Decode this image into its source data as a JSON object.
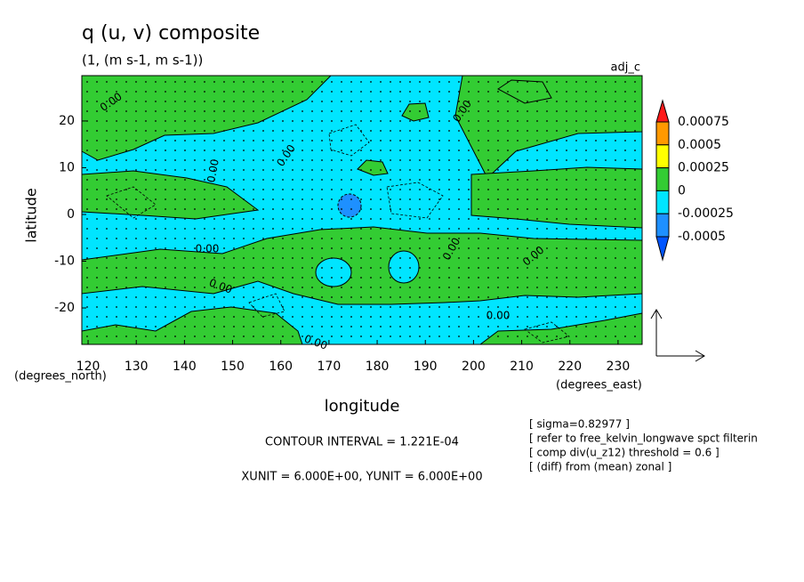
{
  "chart_data": {
    "type": "contour",
    "title": "q (u, v) composite",
    "subtitle": "(1, (m s-1, m s-1))",
    "run_label": "adj_c",
    "x_label": "longitude",
    "y_label": "latitude",
    "y_units": "(degrees_north)",
    "x_units": "(degrees_east)",
    "xlim": [
      118.7,
      235
    ],
    "ylim": [
      -27.8,
      29.7
    ],
    "xticks": [
      120,
      130,
      140,
      150,
      160,
      170,
      180,
      190,
      200,
      210,
      220,
      230
    ],
    "yticks": [
      20,
      10,
      0,
      -10,
      -20
    ],
    "colorbar": {
      "levels": [
        0.00075,
        0.0005,
        0.00025,
        0,
        -0.00025,
        -0.0005
      ],
      "colors": [
        "#ff1a1a",
        "#ff9900",
        "#ffff00",
        "#33cc33",
        "#00e5ff",
        "#1e90ff",
        "#0055ff"
      ]
    },
    "contour_labels": [
      "0.00",
      "0.00",
      "0.00",
      "0.00",
      "0.00",
      "0.00",
      "0.00",
      "0.00",
      "0.00",
      "0.00"
    ],
    "contour_interval": "CONTOUR INTERVAL = 1.221E-04",
    "vector_units": "XUNIT = 6.000E+00, YUNIT = 6.000E+00",
    "notes": [
      "[ sigma=0.82977 ]",
      "[ refer to free_kelvin_longwave spct filterin",
      "[ comp div(u_z12) threshold = 0.6 ]",
      "[ (diff) from (mean) zonal ]"
    ]
  }
}
